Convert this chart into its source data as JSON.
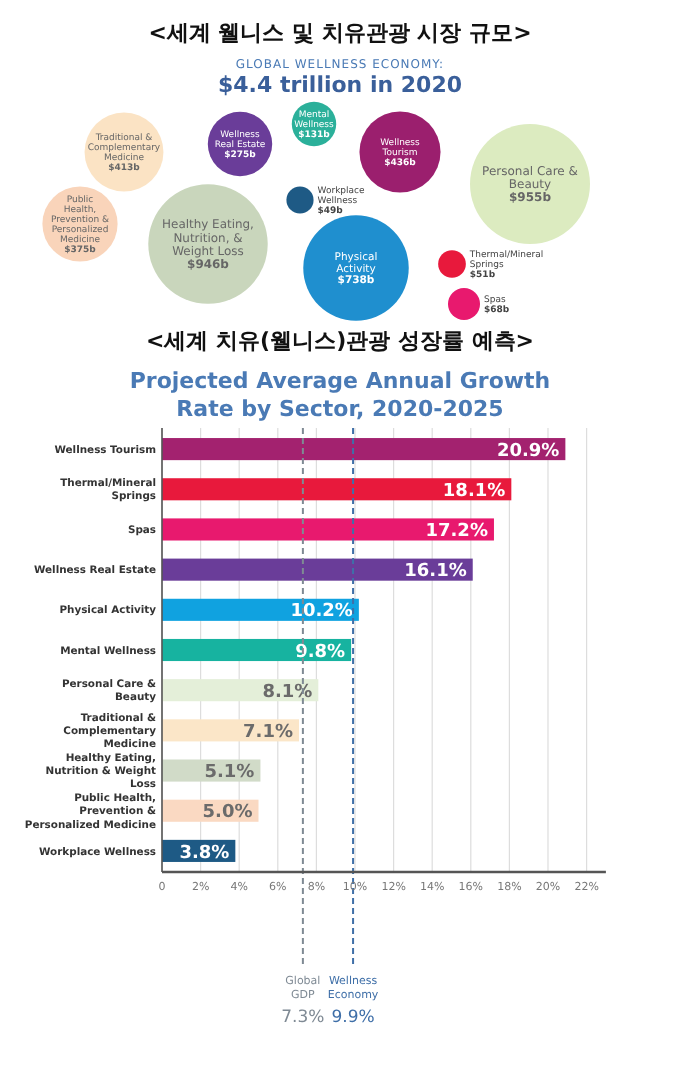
{
  "chart_data": [
    {
      "type": "other",
      "title": "<세계 웰니스 및 치유관광 시장 규모>",
      "subtitle": "GLOBAL WELLNESS ECONOMY:",
      "annotations": [
        "$4.4 trillion in 2020"
      ],
      "categories": [
        "Traditional & Complementary Medicine",
        "Public Health, Prevention & Personalized Medicine",
        "Healthy Eating, Nutrition, & Weight Loss",
        "Wellness Real Estate",
        "Mental Wellness",
        "Wellness Tourism",
        "Workplace Wellness",
        "Physical Activity",
        "Personal Care & Beauty",
        "Thermal/Mineral Springs",
        "Spas"
      ],
      "values": [
        413,
        375,
        946,
        275,
        131,
        436,
        49,
        738,
        955,
        51,
        68
      ],
      "value_labels": [
        "$413b",
        "$375b",
        "$946b",
        "$275b",
        "$131b",
        "$436b",
        "$49b",
        "$738b",
        "$955b",
        "$51b",
        "$68b"
      ],
      "colors": [
        "#fbe3c4",
        "#f9d4ba",
        "#c9d6bc",
        "#6a3d99",
        "#2bb09a",
        "#9b1f6e",
        "#1e5a85",
        "#1f8fcf",
        "#dcebc0",
        "#e8193c",
        "#e8196e"
      ]
    },
    {
      "type": "bar",
      "orientation": "horizontal",
      "title": "<세계 치유(웰니스)관광 성장률 예측>",
      "subtitle": "Projected Average Annual Growth Rate by Sector, 2020-2025",
      "categories": [
        "Wellness Tourism",
        "Thermal/Mineral Springs",
        "Spas",
        "Wellness Real Estate",
        "Physical Activity",
        "Mental Wellness",
        "Personal Care & Beauty",
        "Traditional & Complementary Medicine",
        "Healthy Eating, Nutrition & Weight Loss",
        "Public Health, Prevention & Personalized Medicine",
        "Workplace Wellness"
      ],
      "values": [
        20.9,
        18.1,
        17.2,
        16.1,
        10.2,
        9.8,
        8.1,
        7.1,
        5.1,
        5.0,
        3.8
      ],
      "value_labels": [
        "20.9%",
        "18.1%",
        "17.2%",
        "16.1%",
        "10.2%",
        "9.8%",
        "8.1%",
        "7.1%",
        "5.1%",
        "5.0%",
        "3.8%"
      ],
      "colors": [
        "#a3226f",
        "#e8193c",
        "#e8196e",
        "#6a3d99",
        "#10a2e0",
        "#17b3a0",
        "#e4efd9",
        "#fbe6c8",
        "#d1dbc8",
        "#fad9c2",
        "#1e5a85"
      ],
      "xlim": [
        0,
        23
      ],
      "xticks": [
        0,
        {
          "value": 2,
          "label": "2%"
        },
        {
          "value": 4,
          "label": "4%"
        },
        {
          "value": 6,
          "label": "6%"
        },
        {
          "value": 8,
          "label": "8%"
        },
        {
          "value": 10,
          "label": "10%"
        },
        {
          "value": 12,
          "label": "12%"
        },
        {
          "value": 14,
          "label": "14%"
        },
        {
          "value": 16,
          "label": "16%"
        },
        {
          "value": 18,
          "label": "18%"
        },
        {
          "value": 20,
          "label": "20%"
        },
        {
          "value": 22,
          "label": "22%"
        }
      ],
      "grid": "x",
      "ref_lines": [
        {
          "axis": "x",
          "value": 7.3,
          "label": "Global GDP 7.3%",
          "color": "#7f8a94",
          "line_style": "dashed"
        },
        {
          "axis": "x",
          "value": 9.9,
          "label": "Wellness Economy 9.9%",
          "color": "#3f6fa8",
          "line_style": "dashed"
        }
      ]
    }
  ]
}
